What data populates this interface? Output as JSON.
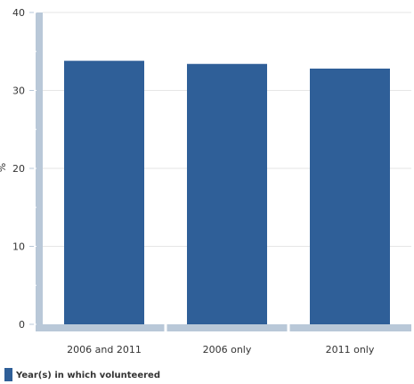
{
  "chart_data": {
    "type": "bar",
    "title": "",
    "xlabel": "",
    "ylabel": "%",
    "ylim": [
      0,
      40
    ],
    "yticks": [
      0,
      10,
      20,
      30,
      40
    ],
    "categories": [
      "2006 and 2011",
      "2006 only",
      "2011 only"
    ],
    "series": [
      {
        "name": "Year(s) in which volunteered",
        "values": [
          33.8,
          33.4,
          32.8
        ]
      }
    ],
    "grid": true,
    "legend_position": "bottom-left",
    "colors": {
      "bar": "#2f5f98",
      "axis": "#b9c8d8",
      "grid": "#e6e6e6"
    }
  }
}
